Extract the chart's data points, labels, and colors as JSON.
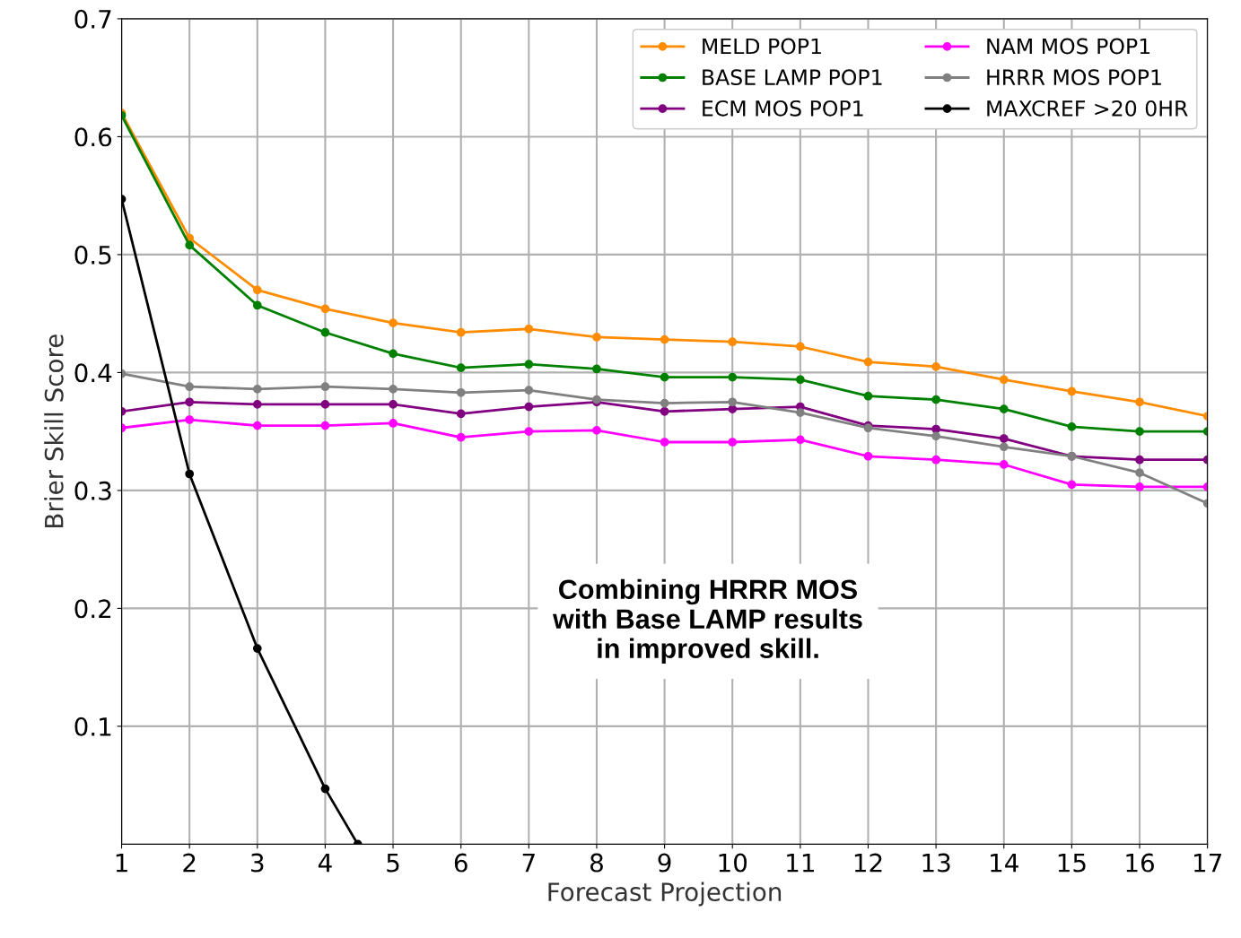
{
  "chart_data": {
    "type": "line",
    "xlabel": "Forecast Projection",
    "ylabel": "Brier Skill Score",
    "x": [
      1,
      2,
      3,
      4,
      5,
      6,
      7,
      8,
      9,
      10,
      11,
      12,
      13,
      14,
      15,
      16,
      17
    ],
    "series": [
      {
        "name": "MELD POP1",
        "color": "#ff8c00",
        "values": [
          0.62,
          0.514,
          0.47,
          0.454,
          0.442,
          0.434,
          0.437,
          0.43,
          0.428,
          0.426,
          0.422,
          0.409,
          0.405,
          0.394,
          0.384,
          0.375,
          0.363
        ]
      },
      {
        "name": "BASE LAMP POP1",
        "color": "#008000",
        "values": [
          0.618,
          0.508,
          0.457,
          0.434,
          0.416,
          0.404,
          0.407,
          0.403,
          0.396,
          0.396,
          0.394,
          0.38,
          0.377,
          0.369,
          0.354,
          0.35,
          0.35
        ]
      },
      {
        "name": "ECM MOS POP1",
        "color": "#800080",
        "values": [
          0.367,
          0.375,
          0.373,
          0.373,
          0.373,
          0.365,
          0.371,
          0.375,
          0.367,
          0.369,
          0.371,
          0.355,
          0.352,
          0.344,
          0.329,
          0.326,
          0.326
        ]
      },
      {
        "name": "NAM MOS POP1",
        "color": "#ff00ff",
        "values": [
          0.353,
          0.36,
          0.355,
          0.355,
          0.357,
          0.345,
          0.35,
          0.351,
          0.341,
          0.341,
          0.343,
          0.329,
          0.326,
          0.322,
          0.305,
          0.303,
          0.303
        ]
      },
      {
        "name": "HRRR MOS POP1",
        "color": "#808080",
        "values": [
          0.399,
          0.388,
          0.386,
          0.388,
          0.386,
          0.383,
          0.385,
          0.377,
          0.374,
          0.375,
          0.366,
          0.353,
          0.346,
          0.337,
          0.329,
          0.315,
          0.289
        ]
      },
      {
        "name": "MAXCREF >20 0HR",
        "color": "#000000",
        "x": [
          1,
          2,
          3,
          4,
          4.48
        ],
        "values": [
          0.547,
          0.314,
          0.166,
          0.047,
          0.0
        ]
      }
    ],
    "xlim": [
      1,
      17
    ],
    "xticks": [
      1,
      2,
      3,
      4,
      5,
      6,
      7,
      8,
      9,
      10,
      11,
      12,
      13,
      14,
      15,
      16,
      17
    ],
    "ylim": [
      0,
      0.7
    ],
    "yticks": [
      0.1,
      0.2,
      0.3,
      0.4,
      0.5,
      0.6,
      0.7
    ],
    "annotations": [
      "Combining HRRR MOS\nwith Base LAMP results\nin improved skill."
    ],
    "grid": true,
    "legend": "top right",
    "marker": "circle",
    "line_style": "solid"
  }
}
